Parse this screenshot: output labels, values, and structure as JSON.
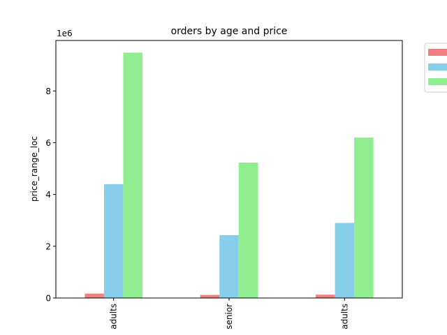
{
  "chart_data": {
    "type": "bar",
    "title": "orders by age and price",
    "ylabel": "price_range_loc",
    "xlabel": "",
    "y_offset_label": "1e6",
    "y_scale": 1000000,
    "categories": [
      "adults",
      "senior",
      "adults"
    ],
    "series": [
      {
        "values": [
          170000,
          120000,
          130000
        ],
        "color": "#f08080"
      },
      {
        "values": [
          4400000,
          2430000,
          2900000
        ],
        "color": "#87ceeb"
      },
      {
        "values": [
          9480000,
          5230000,
          6200000
        ],
        "color": "#90ee90"
      }
    ],
    "ylim": [
      0,
      9950000
    ],
    "yticks": [
      0,
      2,
      4,
      6,
      8
    ],
    "grid": false,
    "legend_position": "outside-top-right"
  }
}
